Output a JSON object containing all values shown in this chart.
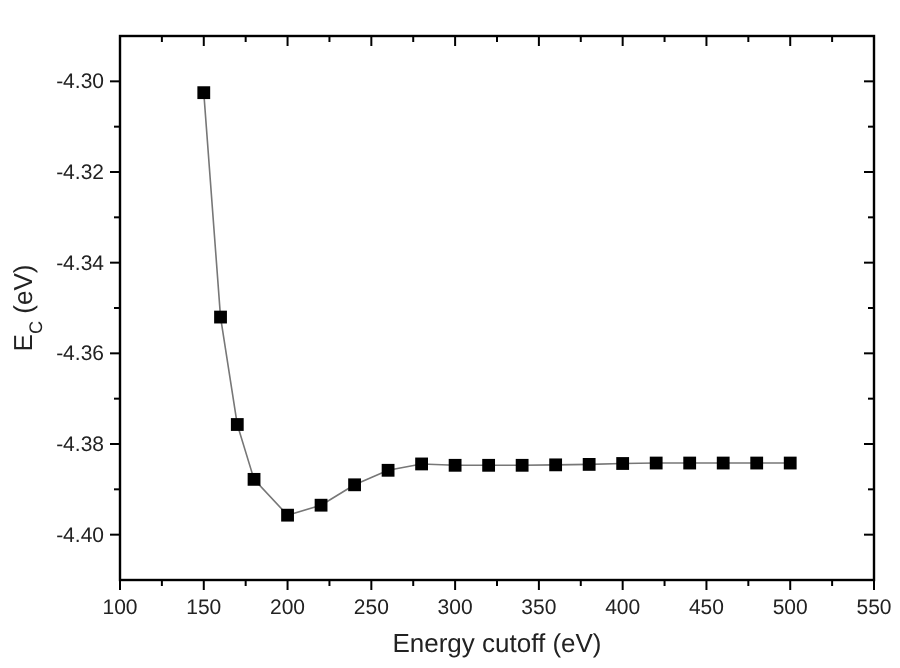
{
  "chart_data": {
    "type": "line",
    "xlabel": "Energy cutoff (eV)",
    "ylabel": "E$_{C}$ (eV)",
    "x": [
      150,
      160,
      170,
      180,
      200,
      220,
      240,
      260,
      280,
      300,
      320,
      340,
      360,
      380,
      400,
      420,
      440,
      460,
      480,
      500
    ],
    "series": [
      {
        "color": "#000000",
        "values": [
          -4.3025,
          -4.352,
          -4.3757,
          -4.3878,
          -4.3957,
          -4.3935,
          -4.389,
          -4.3858,
          -4.3844,
          -4.3847,
          -4.3847,
          -4.3847,
          -4.3846,
          -4.3845,
          -4.3843,
          -4.3842,
          -4.3842,
          -4.3842,
          -4.3842,
          -4.3842
        ]
      }
    ],
    "xlim": [
      100,
      550
    ],
    "xticks": [
      100,
      {
        "value": 125,
        "label": null
      },
      150,
      {
        "value": 175,
        "label": null
      },
      200,
      {
        "value": 225,
        "label": null
      },
      250,
      {
        "value": 275,
        "label": null
      },
      300,
      {
        "value": 325,
        "label": null
      },
      350,
      {
        "value": 375,
        "label": null
      },
      400,
      {
        "value": 425,
        "label": null
      },
      450,
      {
        "value": 475,
        "label": null
      },
      500,
      {
        "value": 525,
        "label": null
      },
      550
    ],
    "ylim": [
      -4.41,
      -4.29
    ],
    "yticks": [
      {
        "value": -4.3,
        "label": "-4.30"
      },
      {
        "value": -4.31,
        "label": null
      },
      {
        "value": -4.32,
        "label": "-4.32"
      },
      {
        "value": -4.33,
        "label": null
      },
      {
        "value": -4.34,
        "label": "-4.34"
      },
      {
        "value": -4.35,
        "label": null
      },
      {
        "value": -4.36,
        "label": "-4.36"
      },
      {
        "value": -4.37,
        "label": null
      },
      {
        "value": -4.38,
        "label": "-4.38"
      },
      {
        "value": -4.39,
        "label": null
      },
      {
        "value": -4.4,
        "label": "-4.40"
      }
    ],
    "marker": "square",
    "line_style": "solid",
    "grid": false
  }
}
